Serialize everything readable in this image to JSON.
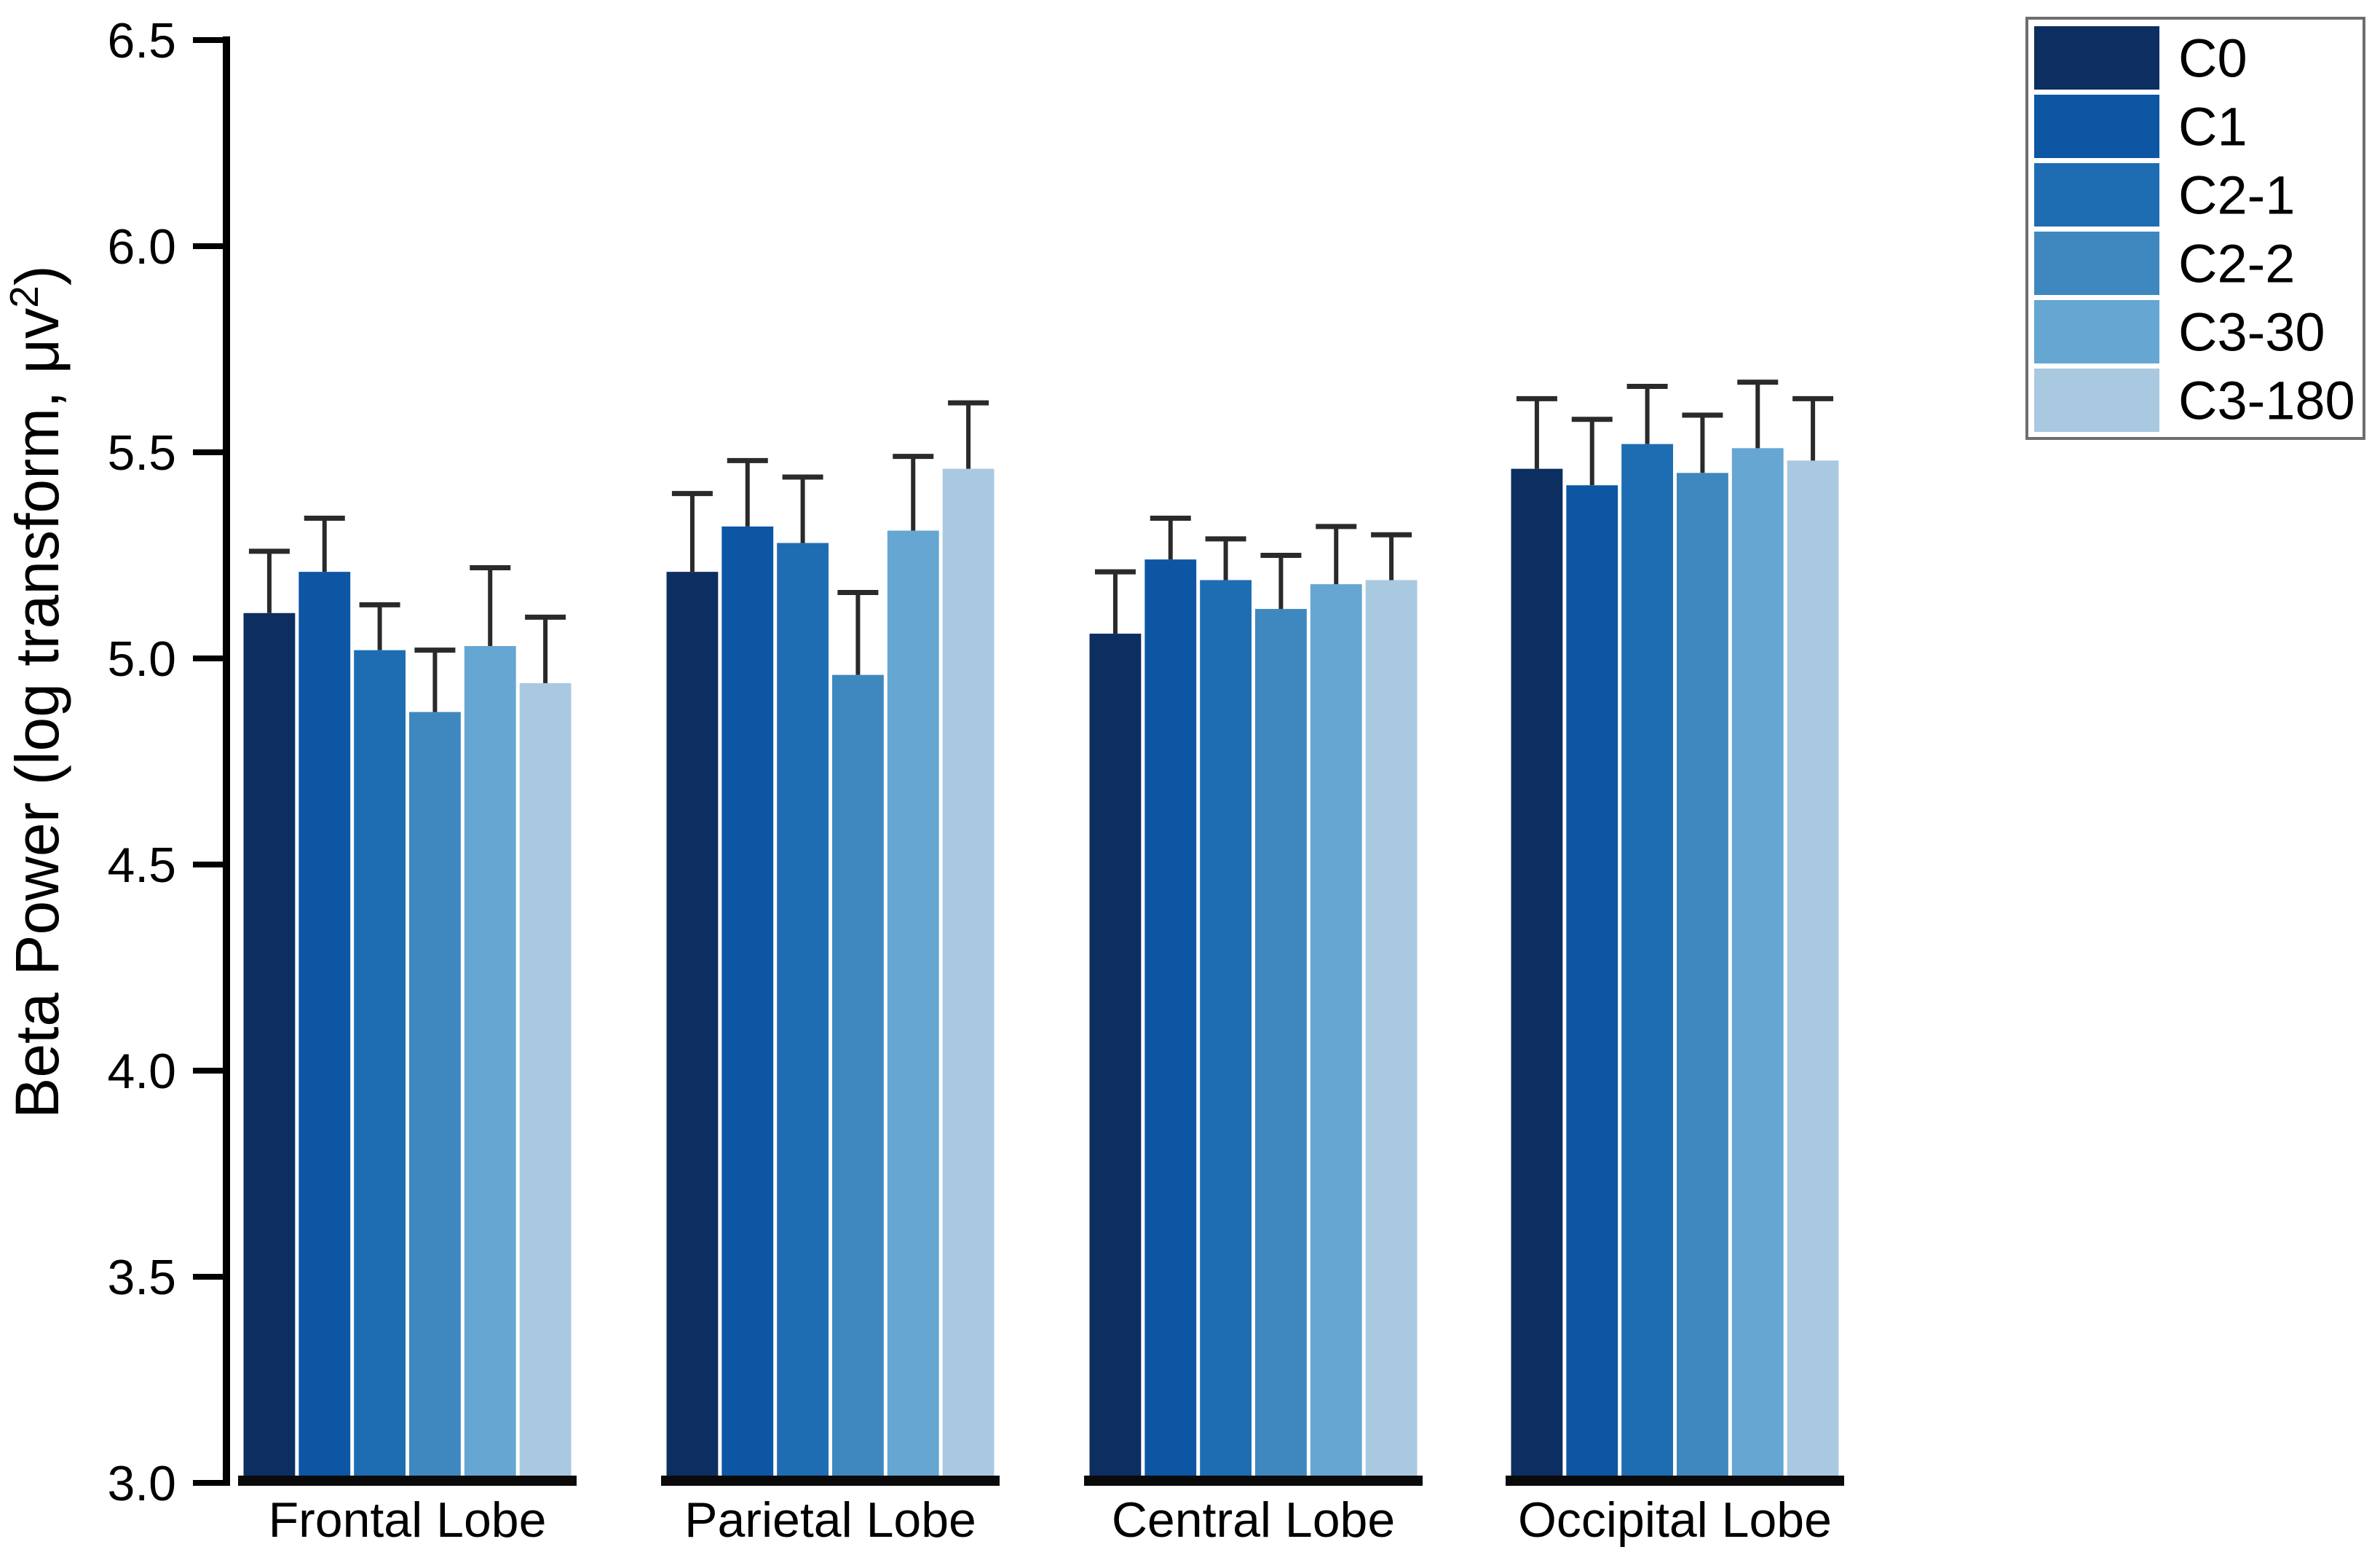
{
  "figure": {
    "background": "#ffffff",
    "kind": "grouped column chart with error bars"
  },
  "chart_data": {
    "type": "bar",
    "title": "",
    "xlabel": "",
    "ylabel": "Beta Power (log transform, μv²)",
    "ylim": [
      3.0,
      6.5
    ],
    "yticks": [
      3.0,
      3.5,
      4.0,
      4.5,
      5.0,
      5.5,
      6.0,
      6.5
    ],
    "grid": false,
    "error_bars": true,
    "legend_position": "top-right",
    "categories": [
      "Frontal Lobe",
      "Parietal Lobe",
      "Central Lobe",
      "Occipital Lobe"
    ],
    "series": [
      {
        "name": "C0",
        "color": "#0c2e60",
        "values": [
          5.11,
          5.21,
          5.06,
          5.46
        ],
        "errors": [
          0.15,
          0.19,
          0.15,
          0.17
        ]
      },
      {
        "name": "C1",
        "color": "#0d56a4",
        "values": [
          5.21,
          5.32,
          5.24,
          5.42
        ],
        "errors": [
          0.13,
          0.16,
          0.1,
          0.16
        ]
      },
      {
        "name": "C2-1",
        "color": "#1e6db3",
        "values": [
          5.02,
          5.28,
          5.19,
          5.52
        ],
        "errors": [
          0.11,
          0.16,
          0.1,
          0.14
        ]
      },
      {
        "name": "C2-2",
        "color": "#3e88bf",
        "values": [
          4.87,
          4.96,
          5.12,
          5.45
        ],
        "errors": [
          0.15,
          0.2,
          0.13,
          0.14
        ]
      },
      {
        "name": "C3-30",
        "color": "#65a6d3",
        "values": [
          5.03,
          5.31,
          5.18,
          5.51
        ],
        "errors": [
          0.19,
          0.18,
          0.14,
          0.16
        ]
      },
      {
        "name": "C3-180",
        "color": "#a9c9e1",
        "values": [
          4.94,
          5.46,
          5.19,
          5.48
        ],
        "errors": [
          0.16,
          0.16,
          0.11,
          0.15
        ]
      }
    ],
    "style": {
      "axis_color": "#000000",
      "error_bar_color": "#2a2a2a",
      "baseline_color": "#0a0a0a",
      "legend_border_color": "#6e6e6e",
      "bar_gap_color": "#ffffff"
    }
  }
}
